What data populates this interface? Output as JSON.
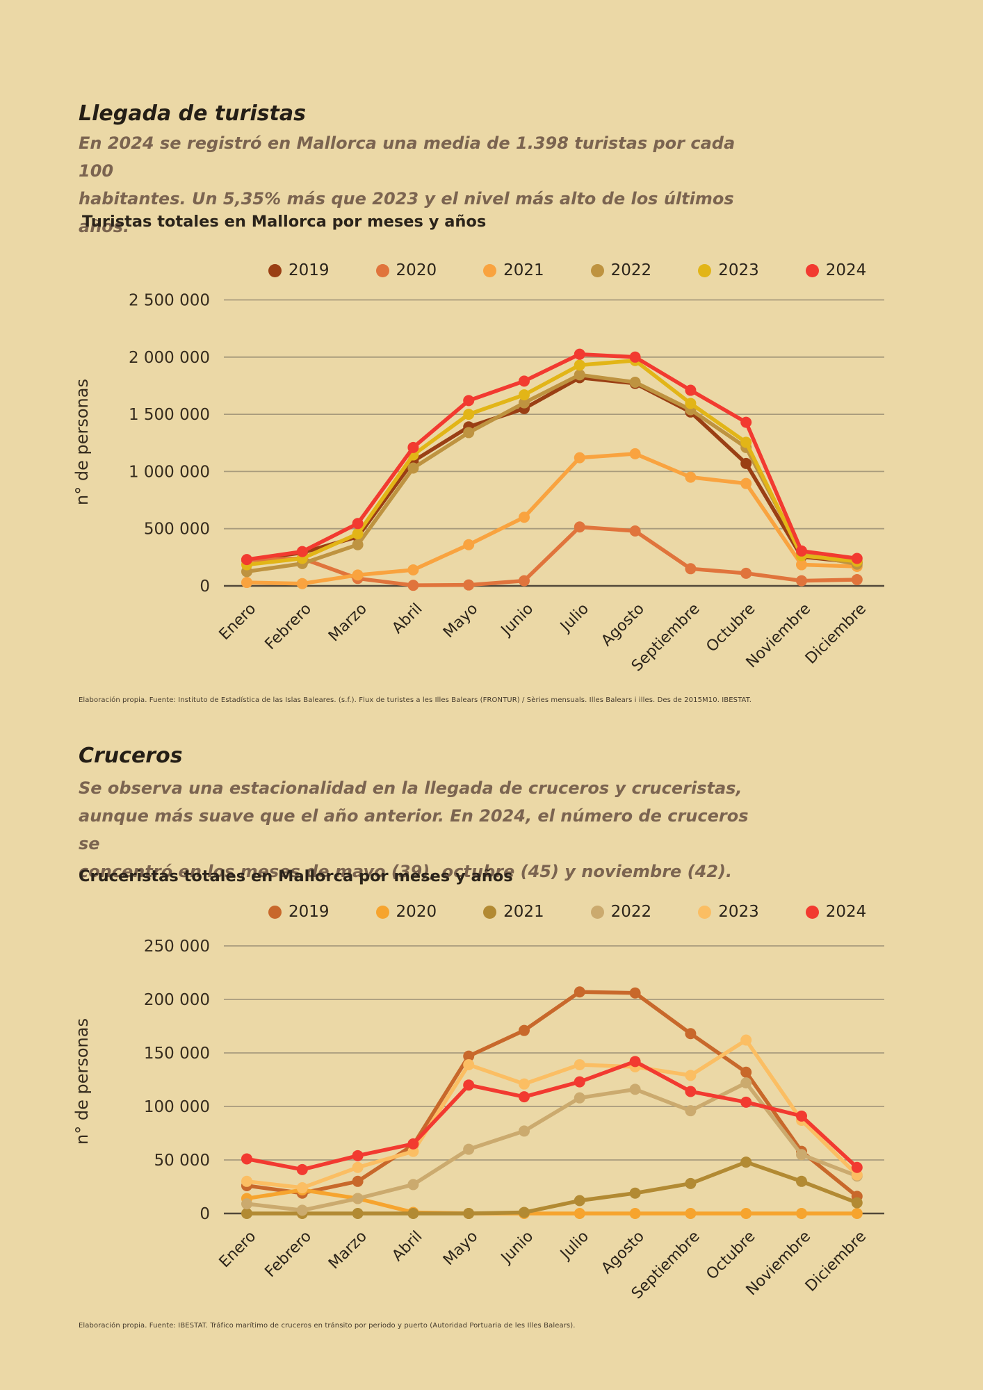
{
  "page": {
    "background": "#EBD8A6",
    "accent_red": "#F23A30"
  },
  "sections": [
    {
      "title": "Llegada de turistas",
      "subtitle": "En 2024 se registró en Mallorca una media de 1.398 turistas por cada 100\nhabitantes. Un 5,35% más que 2023 y el nivel más alto de los últimos años.",
      "source": "Elaboración propia. Fuente: Instituto de Estadística de las Islas Baleares. (s.f.). Flux de turistes a les Illes Balears (FRONTUR) / Sèries mensuals. Illes Balears i illes. Des de 2015M10. IBESTAT."
    },
    {
      "title": "Cruceros",
      "subtitle": "Se observa una estacionalidad en la llegada de cruceros y cruceristas,\naunque más suave que el año anterior. En 2024, el número de cruceros se\nconcentró en los meses de mayo (39), octubre (45) y noviembre (42).",
      "source": "Elaboración propia. Fuente: IBESTAT. Tráfico marítimo de cruceros en tránsito por periodo y puerto (Autoridad Portuaria de les Illes Balears)."
    }
  ],
  "chart_data": [
    {
      "type": "line",
      "title": "Turistas totales en Mallorca por meses y años",
      "ylabel": "n° de personas",
      "categories": [
        "Enero",
        "Febrero",
        "Marzo",
        "Abril",
        "Mayo",
        "Junio",
        "Julio",
        "Agosto",
        "Septiembre",
        "Octubre",
        "Noviembre",
        "Diciembre"
      ],
      "ylim": [
        0,
        2500000
      ],
      "ytick_step": 500000,
      "grid": true,
      "legend_position": "top",
      "series": [
        {
          "name": "2019",
          "color": "#9A3F14",
          "values": [
            225000,
            290000,
            430000,
            1090000,
            1390000,
            1550000,
            1820000,
            1770000,
            1520000,
            1070000,
            255000,
            205000
          ]
        },
        {
          "name": "2020",
          "color": "#E0743C",
          "values": [
            225000,
            240000,
            65000,
            5000,
            8000,
            45000,
            515000,
            480000,
            150000,
            110000,
            45000,
            55000
          ]
        },
        {
          "name": "2021",
          "color": "#F9A33F",
          "values": [
            30000,
            20000,
            95000,
            140000,
            360000,
            600000,
            1120000,
            1155000,
            950000,
            895000,
            185000,
            170000
          ]
        },
        {
          "name": "2022",
          "color": "#BE9340",
          "values": [
            125000,
            195000,
            360000,
            1030000,
            1340000,
            1600000,
            1845000,
            1780000,
            1540000,
            1210000,
            280000,
            190000
          ]
        },
        {
          "name": "2023",
          "color": "#E2B517",
          "values": [
            185000,
            240000,
            455000,
            1145000,
            1500000,
            1670000,
            1930000,
            1970000,
            1595000,
            1255000,
            265000,
            215000
          ]
        },
        {
          "name": "2024",
          "color": "#F23A30",
          "values": [
            230000,
            300000,
            545000,
            1210000,
            1620000,
            1790000,
            2025000,
            2000000,
            1710000,
            1430000,
            305000,
            240000
          ]
        }
      ]
    },
    {
      "type": "line",
      "title": "Cruceristas totales en Mallorca por meses y años",
      "ylabel": "n° de personas",
      "categories": [
        "Enero",
        "Febrero",
        "Marzo",
        "Abril",
        "Mayo",
        "Junio",
        "Julio",
        "Agosto",
        "Septiembre",
        "Octubre",
        "Noviembre",
        "Diciembre"
      ],
      "ylim": [
        0,
        250000
      ],
      "ytick_step": 50000,
      "grid": true,
      "legend_position": "top",
      "series": [
        {
          "name": "2019",
          "color": "#C8682B",
          "values": [
            26000,
            19000,
            30000,
            64000,
            147000,
            171000,
            207000,
            206000,
            168000,
            132000,
            58000,
            16000
          ]
        },
        {
          "name": "2020",
          "color": "#F6A42E",
          "values": [
            14000,
            22000,
            14000,
            1000,
            0,
            0,
            0,
            0,
            0,
            0,
            0,
            0
          ]
        },
        {
          "name": "2021",
          "color": "#B28A33",
          "values": [
            0,
            0,
            0,
            0,
            0,
            1000,
            12000,
            19000,
            28000,
            48000,
            30000,
            10000
          ]
        },
        {
          "name": "2022",
          "color": "#CBAA6E",
          "values": [
            9000,
            3000,
            14000,
            27000,
            60000,
            77000,
            108000,
            116000,
            96000,
            122000,
            55000,
            35000
          ]
        },
        {
          "name": "2023",
          "color": "#FBBE63",
          "values": [
            30000,
            24000,
            43000,
            58000,
            139000,
            121000,
            139000,
            137000,
            129000,
            162000,
            87000,
            36000
          ]
        },
        {
          "name": "2024",
          "color": "#F23A30",
          "values": [
            51000,
            41000,
            54000,
            65000,
            120000,
            109000,
            123000,
            142000,
            114000,
            104000,
            91000,
            43000
          ]
        }
      ]
    }
  ]
}
